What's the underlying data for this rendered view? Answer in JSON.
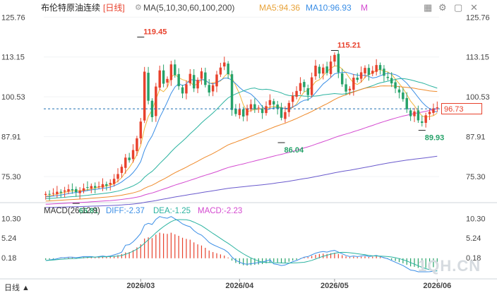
{
  "header": {
    "title": "布伦特原油连续",
    "period": "[日线]",
    "gear_icon": "gear-icon",
    "ma_label": "MA(5,10,30,60,100,200)",
    "ma5_label": "MA5:94.36",
    "ma10_label": "MA10:96.93",
    "more_label": "M",
    "toolbar_icons": [
      "grid-icon",
      "settings-icon",
      "window-icon",
      "close-icon"
    ]
  },
  "price_tag": "96.73",
  "macd_header": {
    "label": "MACD(26,12,9)",
    "diff": "DIFF:-2.37",
    "dea": "DEA:-1.25",
    "macd": "MACD:-2.23"
  },
  "bottom_label": "日线 ▲",
  "watermark": "1QH.CN",
  "colors": {
    "up": "#e8412c",
    "down": "#26a269",
    "ma5": "#f2b63c",
    "ma10": "#3a8ee6",
    "ma30": "#2bb3a0",
    "ma60": "#ef8b2c",
    "ma100": "#d44ad0",
    "ma200": "#6a5acd",
    "dash": "#1f6fb2"
  },
  "chart_data": {
    "type": "candlestick",
    "price_axis": {
      "ticks": [
        125.76,
        113.15,
        100.53,
        87.91,
        75.3
      ],
      "ylim": [
        67.5,
        128.5
      ]
    },
    "macd_axis": {
      "ticks": [
        10.3,
        5.24,
        0.18
      ],
      "ylim": [
        -3.5,
        12
      ]
    },
    "x_labels": [
      {
        "label": "2026/03",
        "index": 25
      },
      {
        "label": "2026/04",
        "index": 51
      },
      {
        "label": "2026/05",
        "index": 76
      },
      {
        "label": "2026/06",
        "index": 103
      }
    ],
    "annotations": [
      {
        "text": "119.45",
        "index": 25,
        "value": 119.45,
        "color": "#e8412c"
      },
      {
        "text": "115.21",
        "index": 76,
        "value": 115.21,
        "color": "#e8412c"
      },
      {
        "text": "86.04",
        "index": 62,
        "value": 86.04,
        "color": "#26a269"
      },
      {
        "text": "89.93",
        "index": 99,
        "value": 89.93,
        "color": "#26a269"
      },
      {
        "text": "66.81",
        "index": 8,
        "value": 66.81,
        "color": "#26a269"
      }
    ],
    "reference_price": 96.73,
    "close": [
      69.8,
      69.6,
      70.1,
      70.5,
      70.2,
      70.9,
      71.3,
      71.0,
      70.4,
      70.8,
      71.6,
      71.9,
      72.3,
      71.8,
      72.2,
      72.9,
      72.4,
      73.3,
      74.6,
      76.1,
      78.4,
      81.3,
      80.5,
      83.7,
      87.4,
      92.7,
      108.5,
      99.3,
      94.1,
      103.8,
      108.9,
      104.7,
      106.2,
      110.8,
      107.4,
      103.9,
      101.6,
      104.5,
      107.8,
      103.2,
      105.9,
      108.6,
      104.3,
      101.9,
      104.2,
      107.6,
      109.8,
      111.4,
      107.7,
      96.4,
      95.1,
      96.6,
      94.3,
      96.9,
      98.2,
      96.6,
      97.1,
      95.4,
      97.6,
      99.5,
      98.1,
      96.8,
      93.9,
      95.7,
      98.6,
      100.9,
      102.4,
      104.9,
      103.6,
      101.1,
      106.7,
      110.4,
      107.9,
      109.8,
      108.1,
      111.7,
      113.8,
      108.3,
      104.5,
      102.2,
      103.1,
      106.6,
      105.9,
      108.3,
      109.7,
      107.5,
      108.8,
      110.6,
      109.1,
      107.2,
      106.5,
      104.8,
      103.2,
      101.9,
      99.8,
      96.6,
      94.4,
      95.9,
      93.1,
      92.3,
      94.7,
      95.8,
      96.9,
      97.2
    ],
    "macd_hist": [
      -0.4,
      -0.3,
      -0.2,
      -0.1,
      0.1,
      0.1,
      0.2,
      0.2,
      0.1,
      0.2,
      0.3,
      0.3,
      0.3,
      0.2,
      0.3,
      0.4,
      0.3,
      0.4,
      0.6,
      0.8,
      1.1,
      1.5,
      1.6,
      2.1,
      2.8,
      3.6,
      5.1,
      5.4,
      5.2,
      6.1,
      6.6,
      6.4,
      6.3,
      6.6,
      6.2,
      5.8,
      5.3,
      5.0,
      4.8,
      4.1,
      3.6,
      3.3,
      2.7,
      2.0,
      1.6,
      1.3,
      1.0,
      0.7,
      0.2,
      -0.6,
      -1.2,
      -1.5,
      -1.8,
      -1.9,
      -1.8,
      -1.7,
      -1.6,
      -1.5,
      -1.3,
      -1.1,
      -1.0,
      -1.1,
      -1.3,
      -1.2,
      -0.9,
      -0.6,
      -0.4,
      -0.1,
      0.2,
      0.3,
      0.6,
      0.9,
      1.1,
      1.2,
      1.1,
      1.3,
      1.4,
      1.1,
      0.8,
      0.5,
      0.3,
      0.4,
      0.3,
      0.4,
      0.5,
      0.3,
      0.4,
      0.5,
      0.3,
      0.1,
      -0.1,
      -0.4,
      -0.7,
      -1.0,
      -1.3,
      -1.7,
      -2.1,
      -2.2,
      -2.5,
      -2.6,
      -2.5,
      -2.4,
      -2.3,
      -2.23
    ]
  }
}
